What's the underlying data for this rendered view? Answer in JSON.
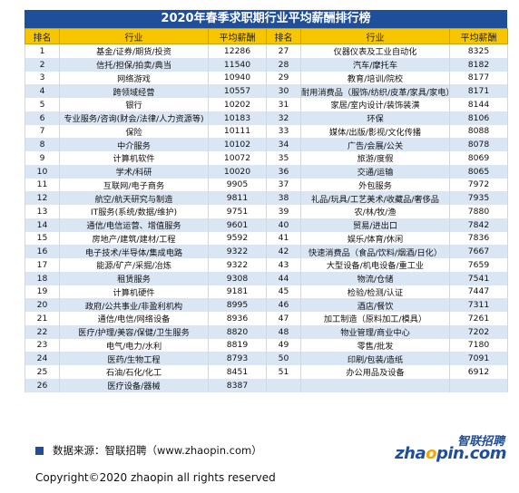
{
  "title": "2020年春季求职期行业平均薪酬排行榜",
  "headers": {
    "rank": "排名",
    "industry": "行业",
    "salary": "平均薪酬"
  },
  "left_rows": [
    {
      "rank": "1",
      "industry": "基金/证券/期货/投资",
      "salary": "12286"
    },
    {
      "rank": "2",
      "industry": "信托/担保/拍卖/典当",
      "salary": "11540"
    },
    {
      "rank": "3",
      "industry": "网络游戏",
      "salary": "10940"
    },
    {
      "rank": "4",
      "industry": "跨领域经营",
      "salary": "10557"
    },
    {
      "rank": "5",
      "industry": "银行",
      "salary": "10202"
    },
    {
      "rank": "6",
      "industry": "专业服务/咨询(财会/法律/人力资源等)",
      "salary": "10183"
    },
    {
      "rank": "7",
      "industry": "保险",
      "salary": "10111"
    },
    {
      "rank": "8",
      "industry": "中介服务",
      "salary": "10102"
    },
    {
      "rank": "9",
      "industry": "计算机软件",
      "salary": "10072"
    },
    {
      "rank": "10",
      "industry": "学术/科研",
      "salary": "10020"
    },
    {
      "rank": "11",
      "industry": "互联网/电子商务",
      "salary": "9905"
    },
    {
      "rank": "12",
      "industry": "航空/航天研究与制造",
      "salary": "9811"
    },
    {
      "rank": "13",
      "industry": "IT服务(系统/数据/维护)",
      "salary": "9751"
    },
    {
      "rank": "14",
      "industry": "通信/电信运营、增值服务",
      "salary": "9601"
    },
    {
      "rank": "15",
      "industry": "房地产/建筑/建材/工程",
      "salary": "9592"
    },
    {
      "rank": "16",
      "industry": "电子技术/半导体/集成电路",
      "salary": "9322"
    },
    {
      "rank": "17",
      "industry": "能源/矿产/采掘/冶炼",
      "salary": "9322"
    },
    {
      "rank": "18",
      "industry": "租赁服务",
      "salary": "9308"
    },
    {
      "rank": "19",
      "industry": "计算机硬件",
      "salary": "9181"
    },
    {
      "rank": "20",
      "industry": "政府/公共事业/非盈利机构",
      "salary": "8995"
    },
    {
      "rank": "21",
      "industry": "通信/电信/网络设备",
      "salary": "8936"
    },
    {
      "rank": "22",
      "industry": "医疗/护理/美容/保健/卫生服务",
      "salary": "8820"
    },
    {
      "rank": "23",
      "industry": "电气/电力/水利",
      "salary": "8819"
    },
    {
      "rank": "24",
      "industry": "医药/生物工程",
      "salary": "8793"
    },
    {
      "rank": "25",
      "industry": "石油/石化/化工",
      "salary": "8451"
    },
    {
      "rank": "26",
      "industry": "医疗设备/器械",
      "salary": "8387"
    }
  ],
  "right_rows": [
    {
      "rank": "27",
      "industry": "仪器仪表及工业自动化",
      "salary": "8325"
    },
    {
      "rank": "28",
      "industry": "汽车/摩托车",
      "salary": "8182"
    },
    {
      "rank": "29",
      "industry": "教育/培训/院校",
      "salary": "8177"
    },
    {
      "rank": "30",
      "industry": "耐用消费品（服饰/纺织/皮革/家具/家电）",
      "salary": "8171"
    },
    {
      "rank": "31",
      "industry": "家居/室内设计/装饰装潢",
      "salary": "8144"
    },
    {
      "rank": "32",
      "industry": "环保",
      "salary": "8106"
    },
    {
      "rank": "33",
      "industry": "媒体/出版/影视/文化传播",
      "salary": "8088"
    },
    {
      "rank": "34",
      "industry": "广告/会展/公关",
      "salary": "8078"
    },
    {
      "rank": "35",
      "industry": "旅游/度假",
      "salary": "8069"
    },
    {
      "rank": "36",
      "industry": "交通/运输",
      "salary": "8065"
    },
    {
      "rank": "37",
      "industry": "外包服务",
      "salary": "7972"
    },
    {
      "rank": "38",
      "industry": "礼品/玩具/工艺美术/收藏品/奢侈品",
      "salary": "7935"
    },
    {
      "rank": "39",
      "industry": "农/林/牧/渔",
      "salary": "7880"
    },
    {
      "rank": "40",
      "industry": "贸易/进出口",
      "salary": "7842"
    },
    {
      "rank": "41",
      "industry": "娱乐/体育/休闲",
      "salary": "7836"
    },
    {
      "rank": "42",
      "industry": "快速消费品（食品/饮料/烟酒/日化）",
      "salary": "7667"
    },
    {
      "rank": "43",
      "industry": "大型设备/机电设备/重工业",
      "salary": "7659"
    },
    {
      "rank": "44",
      "industry": "物流/仓储",
      "salary": "7541"
    },
    {
      "rank": "45",
      "industry": "检验/检测/认证",
      "salary": "7447"
    },
    {
      "rank": "46",
      "industry": "酒店/餐饮",
      "salary": "7311"
    },
    {
      "rank": "47",
      "industry": "加工制造（原料加工/模具）",
      "salary": "7261"
    },
    {
      "rank": "48",
      "industry": "物业管理/商业中心",
      "salary": "7202"
    },
    {
      "rank": "49",
      "industry": "零售/批发",
      "salary": "7180"
    },
    {
      "rank": "50",
      "industry": "印刷/包装/造纸",
      "salary": "7091"
    },
    {
      "rank": "51",
      "industry": "办公用品及设备",
      "salary": "6912"
    },
    {
      "rank": "",
      "industry": "",
      "salary": ""
    }
  ],
  "source": "数据来源：智联招聘（www.zhaopin.com）",
  "logo": {
    "cn": "智联招聘",
    "en_a": "zha",
    "en_o": "o",
    "en_b": "pin.com"
  },
  "copyright": "Copyright©2020 zhaopin all rights reserved",
  "colors": {
    "title_bg": "#1f4e9a",
    "header_bg": "#f7c600",
    "stripe": "#dbe6f4"
  }
}
